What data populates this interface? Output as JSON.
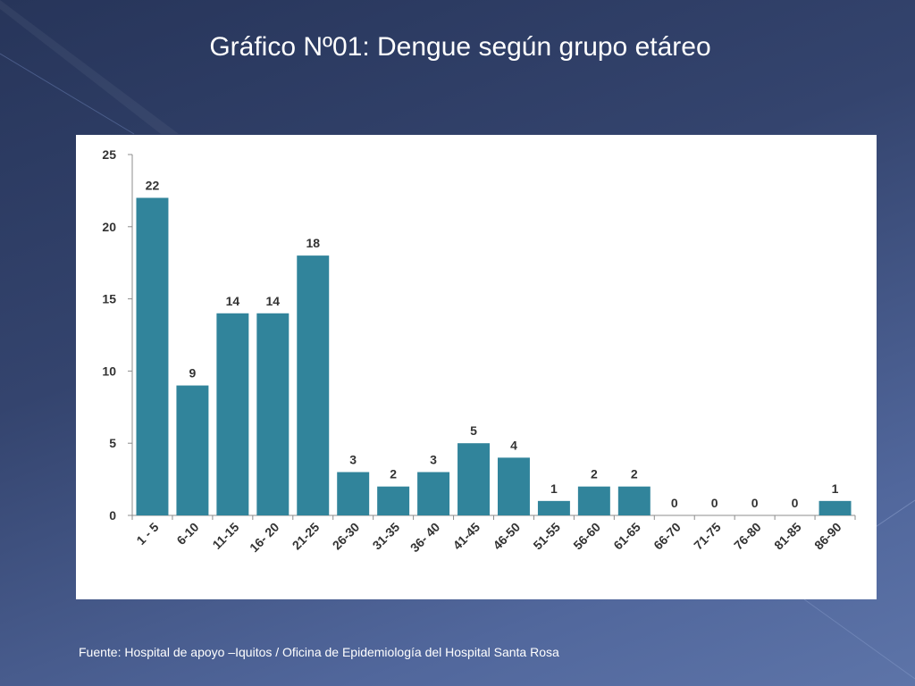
{
  "slide": {
    "title": "Gráfico Nº01: Dengue según grupo etáreo",
    "source": "Fuente: Hospital de apoyo –Iquitos / Oficina de Epidemiología del Hospital Santa Rosa"
  },
  "colors": {
    "bar": "#31849b",
    "axis": "#8c8c8c",
    "text": "#333333"
  },
  "chart_data": {
    "type": "bar",
    "title": "",
    "xlabel": "",
    "ylabel": "",
    "categories": [
      "1 - 5",
      "6-10",
      "11-15",
      "16- 20",
      "21-25",
      "26-30",
      "31-35",
      "36- 40",
      "41-45",
      "46-50",
      "51-55",
      "56-60",
      "61-65",
      "66-70",
      "71-75",
      "76-80",
      "81-85",
      "86-90"
    ],
    "values": [
      22,
      9,
      14,
      14,
      18,
      3,
      2,
      3,
      5,
      4,
      1,
      2,
      2,
      0,
      0,
      0,
      0,
      1
    ],
    "ylim": [
      0,
      25
    ],
    "yticks": [
      0,
      5,
      10,
      15,
      20,
      25
    ],
    "grid": false,
    "data_labels": true,
    "legend": "none"
  }
}
